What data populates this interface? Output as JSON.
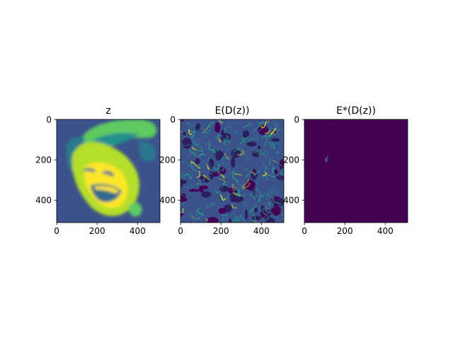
{
  "figure": {
    "background": "#ffffff"
  },
  "chart_data": [
    {
      "type": "heatmap",
      "title": "z",
      "xticks": [
        "0",
        "200",
        "400"
      ],
      "yticks": [
        "0",
        "200",
        "400"
      ],
      "xlim": [
        0,
        511
      ],
      "ylim": [
        511,
        0
      ],
      "colormap": "viridis",
      "content": "image",
      "colors": {
        "low": "#440154",
        "background": "#3b528b",
        "mid": "#21918c",
        "high": "#5ec962",
        "peak": "#fde725"
      }
    },
    {
      "type": "heatmap",
      "title": "E(D(z))",
      "xticks": [
        "0",
        "200",
        "400"
      ],
      "yticks": [
        "0",
        "200",
        "400"
      ],
      "xlim": [
        0,
        511
      ],
      "ylim": [
        511,
        0
      ],
      "colormap": "viridis",
      "content": "image",
      "colors": {
        "low": "#440154",
        "dark": "#2d1e5e",
        "mid": "#2a788e",
        "high": "#22a884",
        "peak": "#d8e219"
      }
    },
    {
      "type": "heatmap",
      "title": "E*(D(z))",
      "xticks": [
        "0",
        "200",
        "400"
      ],
      "yticks": [
        "0",
        "200",
        "400"
      ],
      "xlim": [
        0,
        511
      ],
      "ylim": [
        511,
        0
      ],
      "colormap": "viridis",
      "content": "image",
      "colors": {
        "low": "#440154",
        "speck": "#3e4a89"
      }
    }
  ]
}
